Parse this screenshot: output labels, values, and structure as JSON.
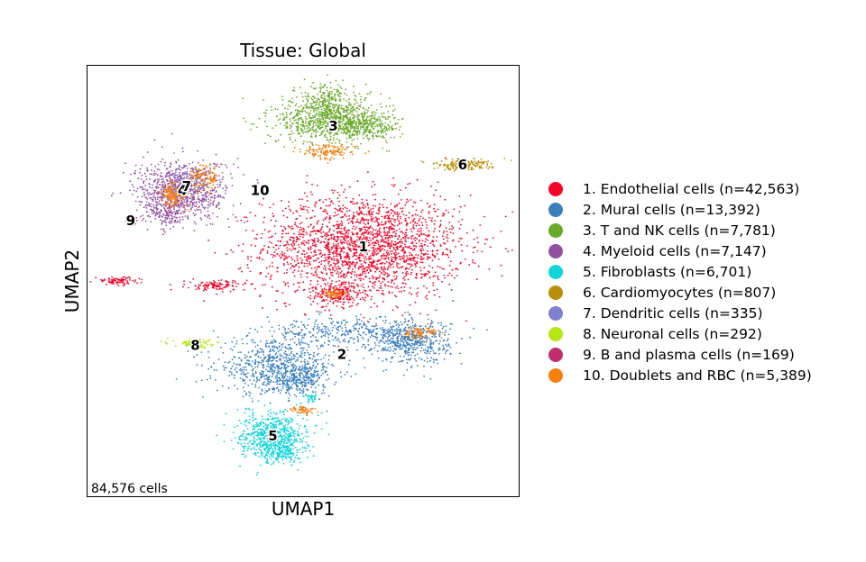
{
  "chart_data": {
    "type": "scatter",
    "title": "Tissue: Global",
    "xlabel": "UMAP1",
    "ylabel": "UMAP2",
    "annotation": "84,576 cells",
    "grid": false,
    "legend_placement": "right",
    "x_ticks": false,
    "y_ticks": false,
    "xlim": [
      0,
      100
    ],
    "ylim": [
      0,
      100
    ],
    "clusters": [
      {
        "id": "1",
        "name": "1. Endothelial cells (n=42,563)",
        "color": "#f5052a",
        "n": 42563,
        "center": [
          64,
          58
        ],
        "blobs": [
          [
            64,
            58,
            23,
            12,
            2200
          ],
          [
            58,
            47,
            6,
            3,
            180
          ],
          [
            30,
            49,
            7,
            1.2,
            120
          ],
          [
            7,
            50,
            5,
            0.9,
            90
          ]
        ]
      },
      {
        "id": "2",
        "name": "2. Mural cells (n=13,392)",
        "color": "#3b7fbd",
        "n": 13392,
        "center": [
          59,
          33
        ],
        "blobs": [
          [
            44,
            30,
            14,
            6,
            700
          ],
          [
            75,
            36,
            9,
            5,
            500
          ],
          [
            60,
            38,
            20,
            3.5,
            350
          ],
          [
            49,
            27,
            6,
            3,
            200
          ]
        ]
      },
      {
        "id": "3",
        "name": "3. T and NK cells (n=7,781)",
        "color": "#6aaa2b",
        "n": 7781,
        "center": [
          57,
          86
        ],
        "blobs": [
          [
            57,
            87,
            13,
            5,
            800
          ],
          [
            55,
            92,
            7,
            4,
            250
          ],
          [
            65,
            86,
            7,
            3,
            180
          ]
        ]
      },
      {
        "id": "4",
        "name": "4. Myeloid cells (n=7,147)",
        "color": "#9350a1",
        "n": 7147,
        "center": [
          22,
          71
        ],
        "blobs": [
          [
            22,
            71,
            11,
            7,
            800
          ],
          [
            18,
            66,
            5,
            3,
            150
          ]
        ]
      },
      {
        "id": "5",
        "name": "5. Fibroblasts (n=6,701)",
        "color": "#10d4d8",
        "n": 6701,
        "center": [
          43,
          14
        ],
        "blobs": [
          [
            43,
            14,
            8,
            5.5,
            650
          ],
          [
            45,
            10,
            4,
            2.5,
            120
          ],
          [
            52,
            23,
            1.5,
            1.2,
            40
          ]
        ]
      },
      {
        "id": "6",
        "name": "6. Cardiomyocytes (n=807)",
        "color": "#b8900a",
        "n": 807,
        "center": [
          87,
          77
        ],
        "blobs": [
          [
            87,
            77,
            7,
            1.2,
            180
          ]
        ]
      },
      {
        "id": "7",
        "name": "7. Dendritic cells (n=335)",
        "color": "#7f7fd0",
        "n": 335,
        "center": [
          23,
          72
        ],
        "blobs": [
          [
            23,
            72,
            5,
            4,
            110
          ]
        ]
      },
      {
        "id": "8",
        "name": "8. Neuronal cells (n=292)",
        "color": "#b5e615",
        "n": 292,
        "center": [
          25,
          35
        ],
        "blobs": [
          [
            25,
            35.5,
            5,
            1,
            90
          ]
        ]
      },
      {
        "id": "9",
        "name": "9. B and plasma cells (n=169)",
        "color": "#c02f6d",
        "n": 169,
        "center": [
          10,
          64
        ],
        "blobs": [
          [
            10,
            64,
            1.3,
            1,
            45
          ]
        ]
      },
      {
        "id": "10",
        "name": "10. Doublets and RBC (n=5,389)",
        "color": "#f77f0e",
        "n": 5389,
        "center": [
          40,
          71
        ],
        "blobs": [
          [
            20,
            70,
            3,
            3,
            160
          ],
          [
            27,
            74,
            3.5,
            3,
            130
          ],
          [
            56,
            80,
            6,
            1.8,
            140
          ],
          [
            57,
            47,
            3,
            1.2,
            60
          ],
          [
            50,
            20,
            3,
            1,
            50
          ],
          [
            77,
            38,
            4,
            1.5,
            80
          ]
        ]
      }
    ]
  }
}
